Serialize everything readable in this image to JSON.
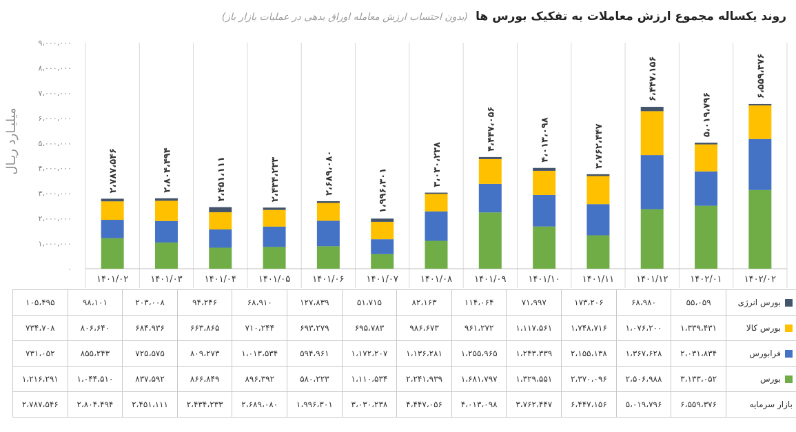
{
  "title": "روند یکساله مجموع ارزش معاملات به تفکیک بورس ها",
  "subtitle": "(بدون احتساب ارزش معامله اوراق بدهی در عملیات بازار باز)",
  "chart_data": {
    "type": "bar",
    "stacked": true,
    "ylabel": "میلیـارد ریـال",
    "ylim": [
      0,
      9000000
    ],
    "yticks": [
      "۰",
      "۱،۰۰۰،۰۰۰",
      "۲،۰۰۰،۰۰۰",
      "۳،۰۰۰،۰۰۰",
      "۴،۰۰۰،۰۰۰",
      "۵،۰۰۰،۰۰۰",
      "۶،۰۰۰،۰۰۰",
      "۷،۰۰۰،۰۰۰",
      "۸،۰۰۰،۰۰۰",
      "۹،۰۰۰،۰۰۰"
    ],
    "categories": [
      "۱۴۰۱/۰۲",
      "۱۴۰۱/۰۳",
      "۱۴۰۱/۰۴",
      "۱۴۰۱/۰۵",
      "۱۴۰۱/۰۶",
      "۱۴۰۱/۰۷",
      "۱۴۰۱/۰۸",
      "۱۴۰۱/۰۹",
      "۱۴۰۱/۱۰",
      "۱۴۰۱/۱۱",
      "۱۴۰۱/۱۲",
      "۱۴۰۲/۰۱",
      "۱۴۰۲/۰۲"
    ],
    "totals": [
      2787546,
      2804494,
      2451111,
      2434233,
      2689080,
      1996301,
      3030238,
      4447056,
      4013098,
      3762447,
      6447156,
      5019796,
      6559376
    ],
    "total_labels": [
      "۲،۷۸۷،۵۴۶",
      "۲،۸۰۴،۴۹۴",
      "۲،۴۵۱،۱۱۱",
      "۲،۴۳۴،۲۳۳",
      "۲،۶۸۹،۰۸۰",
      "۱،۹۹۶،۳۰۱",
      "۳،۰۳۰،۲۳۸",
      "۴،۴۴۷،۰۵۶",
      "۴،۰۱۳،۰۹۸",
      "۳،۷۶۲،۴۴۷",
      "۶،۴۴۷،۱۵۶",
      "۵،۰۱۹،۷۹۶",
      "۶،۵۵۹،۳۷۶"
    ],
    "series": [
      {
        "name": "بورس",
        "color": "#70ad47",
        "values": [
          1216291,
          1044510,
          837592,
          866849,
          896392,
          580223,
          1110534,
          2241939,
          1681797,
          1329551,
          2370096,
          2506988,
          3133052
        ],
        "labels": [
          "۱،۲۱۶،۲۹۱",
          "۱،۰۴۴،۵۱۰",
          "۸۳۷،۵۹۲",
          "۸۶۶،۸۴۹",
          "۸۹۶،۳۹۲",
          "۵۸۰،۲۲۳",
          "۱،۱۱۰،۵۳۴",
          "۲،۲۴۱،۹۳۹",
          "۱،۶۸۱،۷۹۷",
          "۱،۳۲۹،۵۵۱",
          "۲،۳۷۰،۰۹۶",
          "۲،۵۰۶،۹۸۸",
          "۳،۱۳۳،۰۵۲"
        ]
      },
      {
        "name": "فرابورس",
        "color": "#4472c4",
        "values": [
          731052,
          855243,
          725575,
          809273,
          1013534,
          594961,
          1172207,
          1136281,
          1255965,
          1243339,
          2155138,
          1367628,
          2031834
        ],
        "labels": [
          "۷۳۱،۰۵۲",
          "۸۵۵،۲۴۳",
          "۷۲۵،۵۷۵",
          "۸۰۹،۲۷۳",
          "۱،۰۱۳،۵۳۴",
          "۵۹۴،۹۶۱",
          "۱،۱۷۲،۲۰۷",
          "۱،۱۳۶،۲۸۱",
          "۱،۲۵۵،۹۶۵",
          "۱،۲۴۳،۳۳۹",
          "۲،۱۵۵،۱۳۸",
          "۱،۳۶۷،۶۲۸",
          "۲،۰۳۱،۸۳۴"
        ]
      },
      {
        "name": "بورس کالا",
        "color": "#ffc000",
        "values": [
          734708,
          806640,
          684936,
          663865,
          710244,
          693279,
          695783,
          986673,
          961272,
          1117561,
          1748716,
          1076200,
          1339431
        ],
        "labels": [
          "۷۳۴،۷۰۸",
          "۸۰۶،۶۴۰",
          "۶۸۴،۹۳۶",
          "۶۶۳،۸۶۵",
          "۷۱۰،۲۴۴",
          "۶۹۳،۲۷۹",
          "۶۹۵،۷۸۳",
          "۹۸۶،۶۷۳",
          "۹۶۱،۲۷۲",
          "۱،۱۱۷،۵۶۱",
          "۱،۷۴۸،۷۱۶",
          "۱،۰۷۶،۲۰۰",
          "۱،۳۳۹،۴۳۱"
        ]
      },
      {
        "name": "بورس انرژی",
        "color": "#44546a",
        "values": [
          105495,
          98101,
          203008,
          94246,
          68910,
          127839,
          51715,
          82163,
          114064,
          71997,
          173206,
          68980,
          55059
        ],
        "labels": [
          "۱۰۵،۴۹۵",
          "۹۸،۱۰۱",
          "۲۰۳،۰۰۸",
          "۹۴،۲۴۶",
          "۶۸،۹۱۰",
          "۱۲۷،۸۳۹",
          "۵۱،۷۱۵",
          "۸۲،۱۶۳",
          "۱۱۴،۰۶۴",
          "۷۱،۹۹۷",
          "۱۷۳،۲۰۶",
          "۶۸،۹۸۰",
          "۵۵،۰۵۹"
        ]
      }
    ],
    "table": {
      "row_order": [
        "بورس انرژی",
        "بورس کالا",
        "فرابورس",
        "بورس"
      ],
      "total_row_label": "بازار سرمایه"
    },
    "grid": "vertical"
  }
}
